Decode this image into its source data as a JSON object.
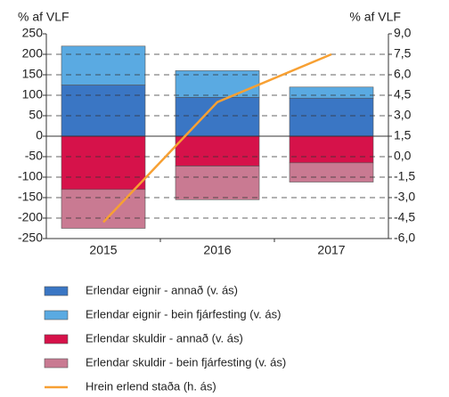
{
  "chart_data": {
    "type": "bar",
    "y_label": "% af VLF",
    "y2_label": "% af VLF",
    "categories": [
      "2015",
      "2016",
      "2017"
    ],
    "series": [
      {
        "name": "Erlendar eignir - annað (v. ás)",
        "color": "#3a76c4",
        "values": [
          125,
          95,
          93
        ]
      },
      {
        "name": "Erlendar eignir - bein fjárfesting (v. ás)",
        "color": "#5aaae2",
        "values": [
          95,
          65,
          27
        ]
      },
      {
        "name": "Erlendar skuldir - annað (v. ás)",
        "color": "#d6124a",
        "values": [
          -130,
          -73,
          -65
        ]
      },
      {
        "name": "Erlendar skuldir - bein fjárfesting (v. ás)",
        "color": "#c97a92",
        "values": [
          -95,
          -82,
          -47
        ]
      },
      {
        "name": "Hrein erlend staða (h. ás)",
        "color": "#f7a033",
        "type": "line",
        "axis": "y2",
        "values": [
          -4.8,
          4.0,
          7.5
        ]
      }
    ],
    "ylim": [
      -250,
      250
    ],
    "yticks": [
      -250,
      -200,
      -150,
      -100,
      -50,
      0,
      50,
      100,
      150,
      200,
      250
    ],
    "y2lim": [
      -6,
      9
    ],
    "y2ticks": [
      {
        "value": -6,
        "label": "-6,0"
      },
      {
        "value": -4.5,
        "label": "-4,5"
      },
      {
        "value": -3,
        "label": "-3,0"
      },
      {
        "value": -1.5,
        "label": "-1,5"
      },
      {
        "value": 0,
        "label": "0,0"
      },
      {
        "value": 1.5,
        "label": "1,5"
      },
      {
        "value": 3,
        "label": "3,0"
      },
      {
        "value": 4.5,
        "label": "4,5"
      },
      {
        "value": 6,
        "label": "6,0"
      },
      {
        "value": 7.5,
        "label": "7,5"
      },
      {
        "value": 9,
        "label": "9,0"
      }
    ],
    "grid": true
  }
}
